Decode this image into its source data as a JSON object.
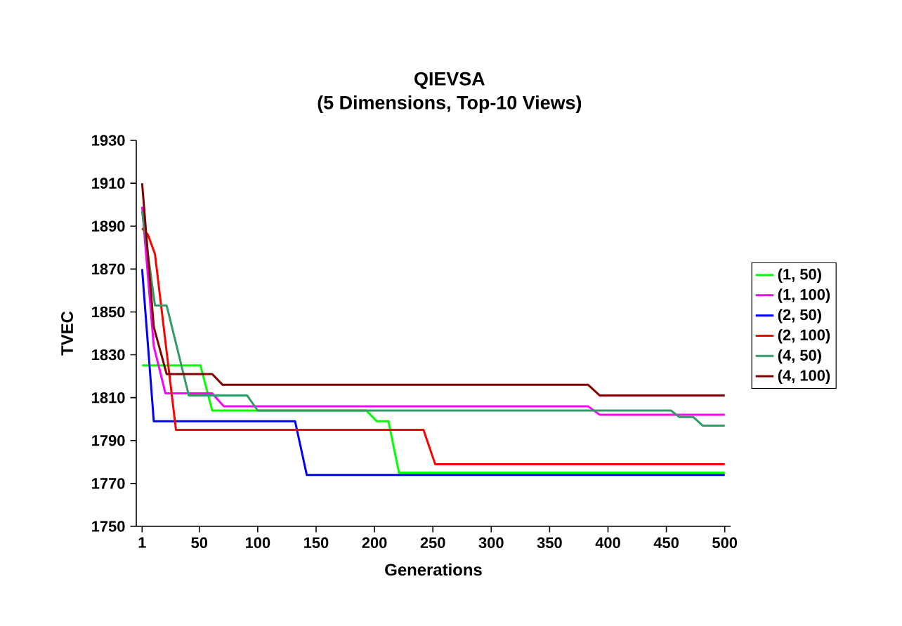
{
  "chart_data": {
    "type": "line",
    "title": "QIEVSA",
    "subtitle": "(5 Dimensions, Top-10 Views)",
    "xlabel": "Generations",
    "ylabel": "TVEC",
    "xlim": [
      -4,
      505
    ],
    "xticks": [
      1,
      50,
      100,
      150,
      200,
      250,
      300,
      350,
      400,
      450,
      500
    ],
    "ylim": [
      1750,
      1930
    ],
    "yticks": [
      1750,
      1770,
      1790,
      1810,
      1830,
      1850,
      1870,
      1890,
      1910,
      1930
    ],
    "grid": false,
    "legend": "right",
    "marker": "none",
    "line_style": "solid",
    "series": [
      {
        "name": "(1, 50)",
        "color": "#00ff00",
        "x": [
          1,
          51,
          61,
          193,
          202,
          212,
          221,
          500
        ],
        "values": [
          1825,
          1825,
          1804,
          1804,
          1799,
          1799,
          1775,
          1775
        ]
      },
      {
        "name": "(1, 100)",
        "color": "#ff00ff",
        "x": [
          1,
          11,
          21,
          61,
          71,
          383,
          393,
          500
        ],
        "values": [
          1899,
          1834,
          1812,
          1812,
          1806,
          1806,
          1802,
          1802
        ]
      },
      {
        "name": "(2, 50)",
        "color": "#0000ff",
        "x": [
          1,
          11,
          132,
          142,
          500
        ],
        "values": [
          1870,
          1799,
          1799,
          1774,
          1774
        ]
      },
      {
        "name": "(2, 100)",
        "color": "#ff0000",
        "x": [
          1,
          6,
          12,
          30,
          242,
          252,
          500
        ],
        "values": [
          1889,
          1886,
          1877,
          1795,
          1795,
          1779,
          1779
        ]
      },
      {
        "name": "(4, 50)",
        "color": "#339966",
        "x": [
          1,
          12,
          22,
          41,
          91,
          100,
          454,
          461,
          473,
          481,
          500
        ],
        "values": [
          1897,
          1853,
          1853,
          1811,
          1811,
          1804,
          1804,
          1801,
          1801,
          1797,
          1797
        ]
      },
      {
        "name": "(4, 100)",
        "color": "#800000",
        "x": [
          1,
          11,
          22,
          61,
          70,
          383,
          393,
          500
        ],
        "values": [
          1910,
          1843,
          1821,
          1821,
          1816,
          1816,
          1811,
          1811
        ]
      }
    ]
  }
}
